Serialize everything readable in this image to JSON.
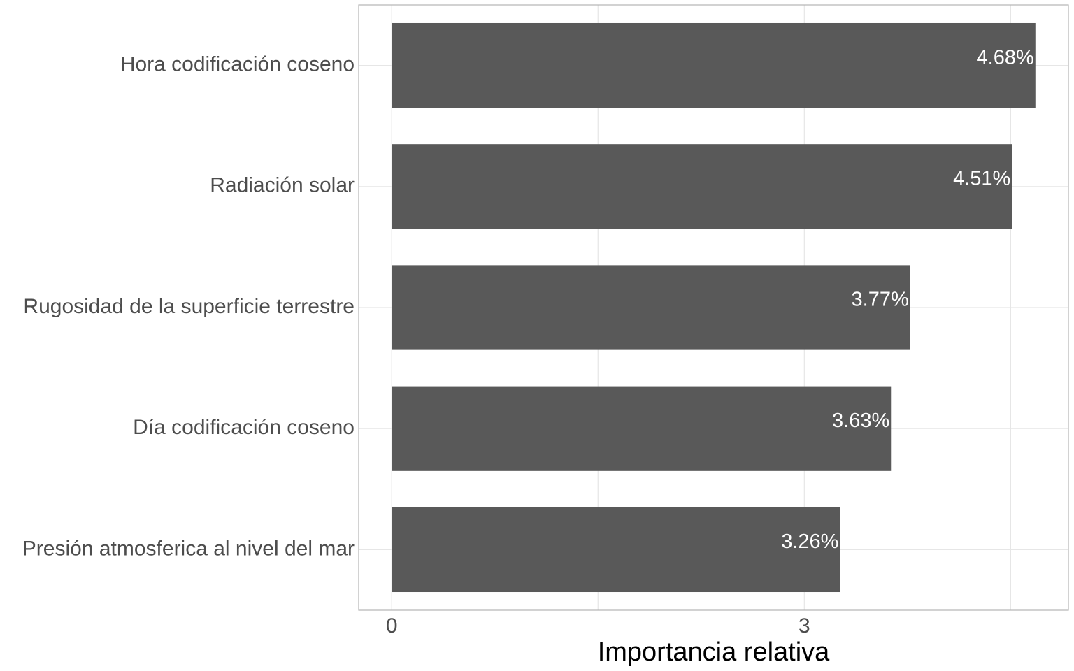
{
  "chart_data": {
    "type": "bar",
    "orientation": "horizontal",
    "categories": [
      "Hora codificación coseno",
      "Radiación solar",
      "Rugosidad de la superficie terrestre",
      "Día codificación coseno",
      "Presión atmosferica al nivel del mar"
    ],
    "values": [
      4.68,
      4.51,
      3.77,
      3.63,
      3.26
    ],
    "value_labels": [
      "4.68%",
      "4.51%",
      "3.77%",
      "3.63%",
      "3.26%"
    ],
    "xlabel": "Importancia relativa",
    "ylabel": "",
    "xlim": [
      -0.24,
      4.92
    ],
    "xticks": [
      0,
      3
    ],
    "xtick_labels": [
      "0",
      "3"
    ],
    "minor_gridlines": [
      1.5,
      4.5
    ],
    "grid": true,
    "legend": "none",
    "colors": {
      "bar": "#595959",
      "grid": "#e6e6e6",
      "panel_border": "#b3b3b3",
      "text": "#4d4d4d",
      "bar_label": "#ffffff"
    }
  }
}
